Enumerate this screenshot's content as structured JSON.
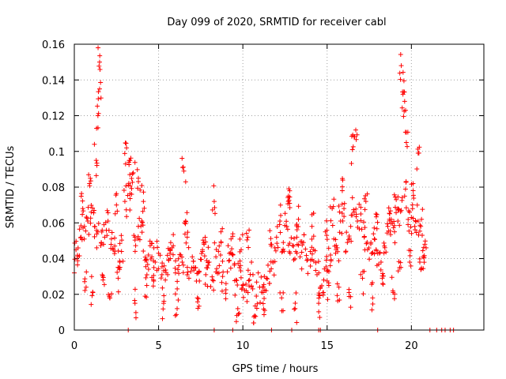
{
  "chart_data": {
    "type": "scatter",
    "title": "Day 099 of 2020, SRMTID for receiver cabl",
    "xlabel": "GPS time / hours",
    "ylabel": "SRMTID / TECUs",
    "xlim": [
      0,
      24.3
    ],
    "ylim": [
      0,
      0.16
    ],
    "xticks": [
      "0",
      "5",
      "10",
      "15",
      "20"
    ],
    "yticks": [
      "0",
      "0.02",
      "0.04",
      "0.06",
      "0.08",
      "0.1",
      "0.12",
      "0.14",
      "0.16"
    ],
    "grid": true,
    "marker": "+",
    "color": "#ff0000",
    "series": [
      {
        "name": "SRMTID",
        "x": [
          0.0,
          0.2,
          0.4,
          0.6,
          0.8,
          1.0,
          1.2,
          1.4,
          1.6,
          1.8,
          2.0,
          2.2,
          2.4,
          2.6,
          2.8,
          3.0,
          3.2,
          3.4,
          3.6,
          3.8,
          4.0,
          4.2,
          4.4,
          4.6,
          4.8,
          5.0,
          5.2,
          5.4,
          5.6,
          5.8,
          6.0,
          6.2,
          6.4,
          6.6,
          6.8,
          7.0,
          7.2,
          7.4,
          7.6,
          7.8,
          8.0,
          8.2,
          8.4,
          8.6,
          8.8,
          9.0,
          9.2,
          9.4,
          9.6,
          9.8,
          10.0,
          10.2,
          10.4,
          10.6,
          10.8,
          11.0,
          11.2,
          11.4,
          11.6,
          11.8,
          12.0,
          12.2,
          12.4,
          12.6,
          12.8,
          13.0,
          13.2,
          13.4,
          13.6,
          13.8,
          14.0,
          14.2,
          14.4,
          14.6,
          14.8,
          15.0,
          15.2,
          15.4,
          15.6,
          15.8,
          16.0,
          16.2,
          16.4,
          16.6,
          16.8,
          17.0,
          17.2,
          17.4,
          17.6,
          17.8,
          18.0,
          18.2,
          18.4,
          18.6,
          18.8,
          19.0,
          19.2,
          19.4,
          19.6,
          19.8,
          20.0,
          20.2,
          20.4,
          20.6,
          20.8,
          0.1,
          0.5,
          0.9,
          1.3,
          1.4,
          1.5,
          1.5,
          2.5,
          3.1,
          3.3,
          3.5,
          3.8,
          4.1,
          6.5,
          8.3,
          12.7,
          15.9,
          16.5,
          19.4,
          19.5,
          19.6,
          19.7,
          20.4,
          1.1,
          2.1,
          3.6,
          4.3,
          5.3,
          6.1,
          7.3,
          9.7,
          10.7,
          11.3,
          12.3,
          13.1,
          14.5,
          15.1,
          15.7,
          16.3,
          17.1,
          17.7,
          18.3,
          18.9,
          19.3,
          19.9,
          20.5,
          0.7,
          1.7,
          2.7,
          4.7,
          5.7,
          6.7,
          7.7,
          8.7,
          9.3,
          9.9,
          10.3,
          11.7,
          12.7,
          13.3,
          14.1,
          14.9,
          15.3,
          16.7,
          17.3,
          17.9,
          18.7,
          19.1,
          20.1,
          20.7,
          3.2,
          8.3,
          9.4,
          11.7,
          12.9,
          14.5,
          14.6,
          18.0,
          21.1,
          21.5,
          21.8,
          22.0,
          22.3,
          22.5
        ],
        "y": [
          0.032,
          0.041,
          0.052,
          0.058,
          0.061,
          0.066,
          0.058,
          0.055,
          0.049,
          0.052,
          0.061,
          0.051,
          0.047,
          0.029,
          0.044,
          0.072,
          0.081,
          0.076,
          0.052,
          0.058,
          0.061,
          0.039,
          0.042,
          0.041,
          0.038,
          0.043,
          0.031,
          0.028,
          0.039,
          0.046,
          0.032,
          0.036,
          0.038,
          0.061,
          0.029,
          0.041,
          0.035,
          0.033,
          0.044,
          0.031,
          0.038,
          0.028,
          0.041,
          0.036,
          0.03,
          0.026,
          0.039,
          0.042,
          0.028,
          0.035,
          0.025,
          0.022,
          0.028,
          0.031,
          0.019,
          0.024,
          0.021,
          0.029,
          0.033,
          0.038,
          0.052,
          0.061,
          0.049,
          0.058,
          0.043,
          0.047,
          0.052,
          0.041,
          0.049,
          0.039,
          0.044,
          0.045,
          0.031,
          0.024,
          0.028,
          0.033,
          0.042,
          0.051,
          0.046,
          0.061,
          0.068,
          0.049,
          0.058,
          0.066,
          0.061,
          0.065,
          0.052,
          0.045,
          0.049,
          0.051,
          0.043,
          0.038,
          0.047,
          0.058,
          0.062,
          0.055,
          0.061,
          0.067,
          0.075,
          0.059,
          0.063,
          0.058,
          0.061,
          0.062,
          0.048,
          0.045,
          0.068,
          0.082,
          0.095,
          0.12,
          0.15,
          0.135,
          0.07,
          0.102,
          0.095,
          0.088,
          0.085,
          0.072,
          0.089,
          0.072,
          0.075,
          0.078,
          0.101,
          0.148,
          0.132,
          0.128,
          0.105,
          0.099,
          0.021,
          0.018,
          0.015,
          0.025,
          0.015,
          0.012,
          0.018,
          0.012,
          0.008,
          0.011,
          0.018,
          0.012,
          0.015,
          0.025,
          0.024,
          0.021,
          0.029,
          0.018,
          0.026,
          0.022,
          0.035,
          0.038,
          0.038,
          0.024,
          0.028,
          0.038,
          0.028,
          0.045,
          0.052,
          0.048,
          0.055,
          0.051,
          0.045,
          0.052,
          0.048,
          0.072,
          0.062,
          0.058,
          0.055,
          0.068,
          0.112,
          0.072,
          0.065,
          0.062,
          0.073,
          0.082,
          0.041,
          0,
          0,
          0,
          0,
          0,
          0,
          0,
          0,
          0,
          0,
          0,
          0,
          0,
          0
        ]
      }
    ]
  }
}
